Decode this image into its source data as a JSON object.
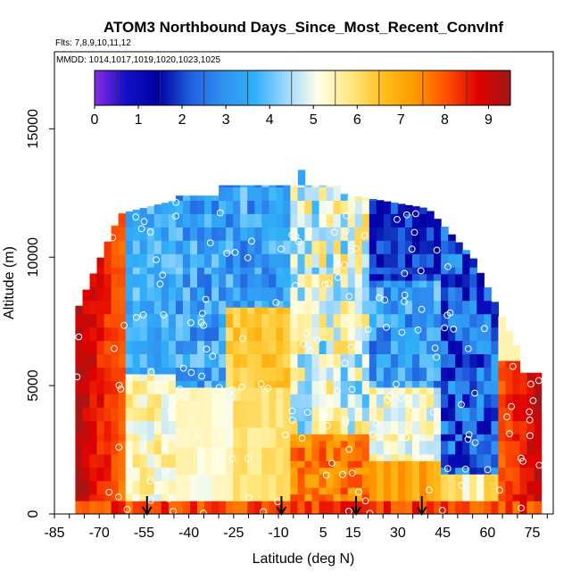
{
  "chart_data": {
    "type": "heatmap",
    "title": "ATOM3 Northbound Days_Since_Most_Recent_ConvInf",
    "subtitle_flights": "Flts: 7,8,9,10,11,12",
    "subtitle_dates": "MMDD: 1014,1017,1019,1020,1023,1025",
    "xlabel": "Latitude (deg N)",
    "ylabel": "Altitude (m)",
    "xlim": [
      -85,
      82
    ],
    "ylim": [
      0,
      18000
    ],
    "x_ticks": [
      "-85",
      "-70",
      "-55",
      "-40",
      "-25",
      "-10",
      "5",
      "15",
      "30",
      "45",
      "60",
      "75"
    ],
    "x_tick_values": [
      -85,
      -70,
      -55,
      -40,
      -25,
      -10,
      5,
      15,
      30,
      45,
      60,
      75
    ],
    "y_ticks": [
      "0",
      "5000",
      "10000",
      "15000"
    ],
    "y_tick_values": [
      0,
      5000,
      10000,
      15000
    ],
    "colorbar": {
      "ticks": [
        "0",
        "1",
        "2",
        "3",
        "4",
        "5",
        "6",
        "7",
        "8",
        "9"
      ],
      "tick_values": [
        0,
        1,
        2,
        3,
        4,
        5,
        6,
        7,
        8,
        9
      ],
      "range": [
        0,
        9.5
      ],
      "colors": [
        "#8a2be2",
        "#1010c8",
        "#0000a0",
        "#2060e0",
        "#3090f0",
        "#30b0f8",
        "#a0d8ff",
        "#ffffe8",
        "#ffe880",
        "#ffc020",
        "#ff9a00",
        "#ff5000",
        "#e00000",
        "#a01818"
      ]
    },
    "arrow_latitudes": [
      -54,
      -9,
      16,
      38
    ],
    "grid": false,
    "legend": "colorbar-top"
  }
}
